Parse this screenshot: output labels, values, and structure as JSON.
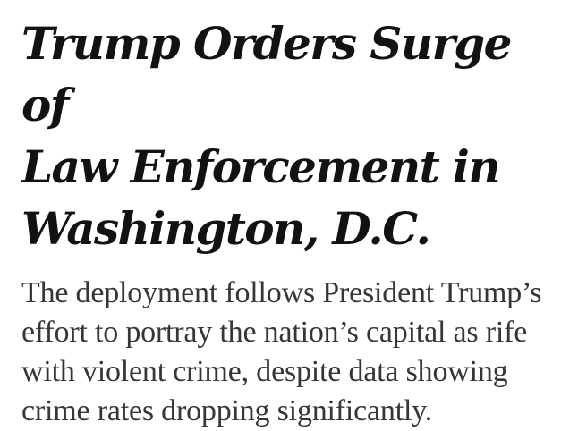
{
  "article": {
    "headline": "Trump Orders Surge of\nLaw Enforcement in\nWashington, D.C.",
    "summary": "The deployment follows President Trump’s\neffort to portray the nation’s capital as rife\nwith violent crime, despite data showing\ncrime rates dropping significantly."
  },
  "colors": {
    "headline": "#121212",
    "summary": "#363636",
    "background": "#ffffff"
  }
}
